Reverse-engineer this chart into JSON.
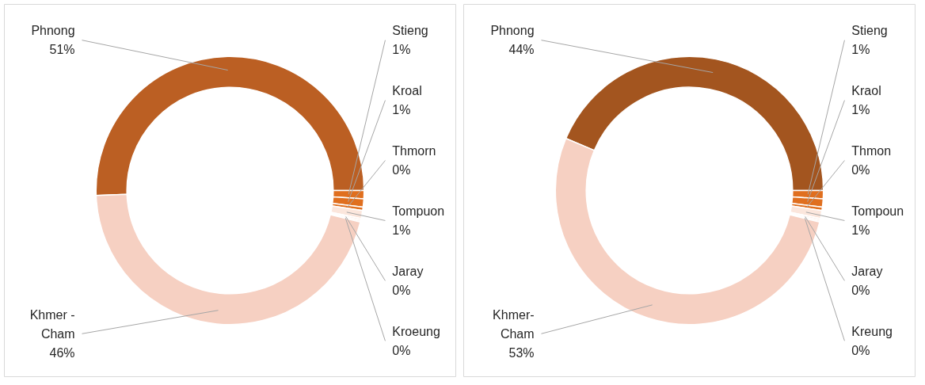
{
  "chart_data": [
    {
      "type": "donut",
      "categories": [
        "Phnong",
        "Stieng",
        "Kroal",
        "Thmorn",
        "Tompuon",
        "Jaray",
        "Kroeung",
        "Khmer - Cham"
      ],
      "values": [
        51,
        1,
        1,
        0.4,
        1,
        0.2,
        0.2,
        46
      ],
      "value_labels": [
        "51%",
        "1%",
        "1%",
        "0%",
        "1%",
        "0%",
        "0%",
        "46%"
      ],
      "colors": [
        "#bb5f23",
        "#e06f1f",
        "#e06f1f",
        "#e06f1f",
        "#fbe6dc",
        "#fbe6dc",
        "#fbe6dc",
        "#f6d0c2"
      ]
    },
    {
      "type": "donut",
      "categories": [
        "Phnong",
        "Stieng",
        "Kraol",
        "Thmon",
        "Tompoun",
        "Jaray",
        "Kreung",
        "Khmer-Cham"
      ],
      "values": [
        44,
        1,
        1,
        0.4,
        1,
        0.2,
        0.2,
        53
      ],
      "value_labels": [
        "44%",
        "1%",
        "1%",
        "0%",
        "1%",
        "0%",
        "0%",
        "53%"
      ],
      "colors": [
        "#a3551f",
        "#e06f1f",
        "#e06f1f",
        "#e06f1f",
        "#fbe6dc",
        "#fbe6dc",
        "#fbe6dc",
        "#f6d0c2"
      ]
    }
  ]
}
